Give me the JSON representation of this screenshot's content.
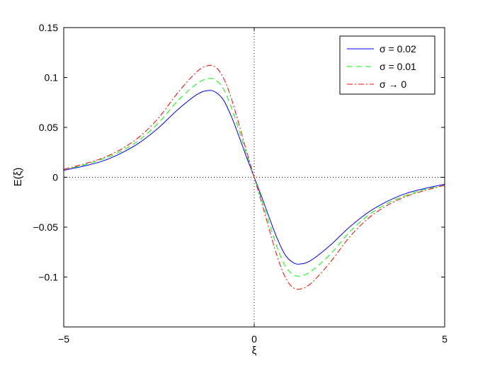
{
  "chart_data": {
    "type": "line",
    "xlabel": "ξ",
    "ylabel": "E(ξ)",
    "xlim": [
      -5,
      5
    ],
    "ylim": [
      -0.15,
      0.15
    ],
    "xticks": [
      -5,
      0,
      5
    ],
    "xtick_labels": [
      "−5",
      "0",
      "5"
    ],
    "yticks": [
      0.15,
      0.1,
      0.05,
      0,
      -0.05,
      -0.1
    ],
    "ytick_labels": [
      "0.15",
      "0.1",
      "0.05",
      "0",
      "−0.05",
      "−0.1"
    ],
    "grid": false,
    "reference_lines": {
      "x": 0,
      "y": 0,
      "style": "dotted"
    },
    "legend_position": "top-right",
    "series": [
      {
        "name": "σ = 0.02",
        "color": "#0000ff",
        "style": "solid",
        "x": [
          -5,
          -4.5,
          -4,
          -3.5,
          -3,
          -2.5,
          -2,
          -1.5,
          -1.2,
          -1,
          -0.8,
          -0.6,
          -0.4,
          -0.2,
          0,
          0.2,
          0.4,
          0.6,
          0.8,
          1,
          1.2,
          1.5,
          2,
          2.5,
          3,
          3.5,
          4,
          4.5,
          5
        ],
        "values": [
          0.007,
          0.011,
          0.016,
          0.024,
          0.035,
          0.05,
          0.068,
          0.083,
          0.087,
          0.085,
          0.077,
          0.061,
          0.041,
          0.02,
          0,
          -0.02,
          -0.041,
          -0.061,
          -0.077,
          -0.085,
          -0.087,
          -0.083,
          -0.068,
          -0.05,
          -0.035,
          -0.024,
          -0.016,
          -0.011,
          -0.007
        ]
      },
      {
        "name": "σ = 0.01",
        "color": "#00ff00",
        "style": "dashed",
        "x": [
          -5,
          -4.5,
          -4,
          -3.5,
          -3,
          -2.5,
          -2,
          -1.5,
          -1.2,
          -1,
          -0.8,
          -0.6,
          -0.4,
          -0.2,
          0,
          0.2,
          0.4,
          0.6,
          0.8,
          1,
          1.2,
          1.5,
          2,
          2.5,
          3,
          3.5,
          4,
          4.5,
          5
        ],
        "values": [
          0.008,
          0.012,
          0.018,
          0.026,
          0.038,
          0.055,
          0.077,
          0.094,
          0.099,
          0.097,
          0.088,
          0.07,
          0.047,
          0.023,
          0,
          -0.023,
          -0.047,
          -0.07,
          -0.088,
          -0.097,
          -0.099,
          -0.094,
          -0.077,
          -0.055,
          -0.038,
          -0.026,
          -0.018,
          -0.012,
          -0.008
        ]
      },
      {
        "name": "σ → 0",
        "color": "#ff0000",
        "style": "dashdot",
        "x": [
          -5,
          -4.5,
          -4,
          -3.5,
          -3,
          -2.5,
          -2,
          -1.5,
          -1.2,
          -1,
          -0.8,
          -0.6,
          -0.4,
          -0.2,
          0,
          0.2,
          0.4,
          0.6,
          0.8,
          1,
          1.2,
          1.5,
          2,
          2.5,
          3,
          3.5,
          4,
          4.5,
          5
        ],
        "values": [
          0.008,
          0.013,
          0.019,
          0.028,
          0.041,
          0.06,
          0.085,
          0.106,
          0.112,
          0.11,
          0.099,
          0.079,
          0.053,
          0.026,
          0,
          -0.026,
          -0.053,
          -0.079,
          -0.099,
          -0.11,
          -0.112,
          -0.106,
          -0.085,
          -0.06,
          -0.041,
          -0.028,
          -0.019,
          -0.013,
          -0.008
        ]
      }
    ]
  }
}
